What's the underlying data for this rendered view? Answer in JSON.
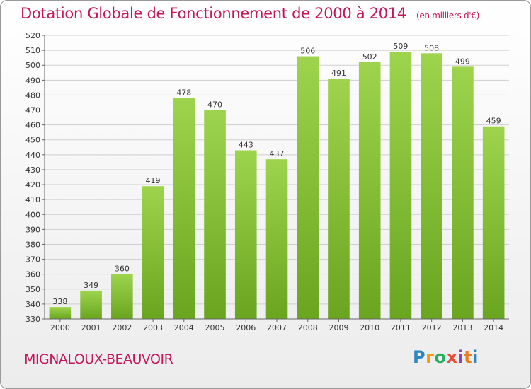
{
  "header": {
    "title": "Dotation Globale de Fonctionnement de 2000 à 2014",
    "subtitle": "(en milliers d'€)"
  },
  "footer": {
    "commune": "MIGNALOUX-BEAUVOIR",
    "logo": [
      "P",
      "r",
      "o",
      "x",
      "i",
      "t",
      "i"
    ]
  },
  "colors": {
    "title": "#c2185b",
    "bar_light": "#9ed44d",
    "bar_dark": "#6aa51f",
    "grid": "#cfcfcf"
  },
  "chart_data": {
    "type": "bar",
    "title": "Dotation Globale de Fonctionnement de 2000 à 2014",
    "subtitle": "(en milliers d'€)",
    "categories": [
      "2000",
      "2001",
      "2002",
      "2003",
      "2004",
      "2005",
      "2006",
      "2007",
      "2008",
      "2009",
      "2010",
      "2011",
      "2012",
      "2013",
      "2014"
    ],
    "values": [
      338,
      349,
      360,
      419,
      478,
      470,
      443,
      437,
      506,
      491,
      502,
      509,
      508,
      499,
      459
    ],
    "ylim": [
      330,
      520
    ],
    "yticks": [
      330,
      340,
      350,
      360,
      370,
      380,
      390,
      400,
      410,
      420,
      430,
      440,
      450,
      460,
      470,
      480,
      490,
      500,
      510,
      520
    ],
    "grid": true,
    "legend": "none"
  }
}
